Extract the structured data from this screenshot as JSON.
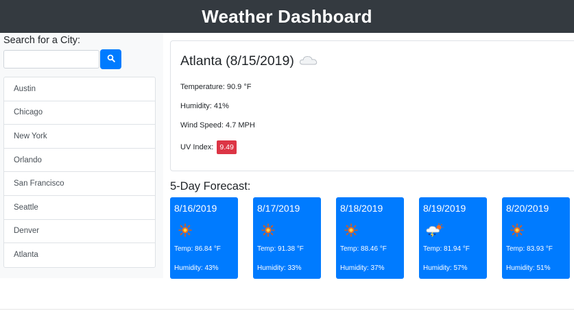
{
  "header": {
    "title": "Weather Dashboard"
  },
  "search": {
    "label": "Search for a City:",
    "value": "",
    "placeholder": "",
    "button_icon": "search-icon"
  },
  "cities": [
    "Austin",
    "Chicago",
    "New York",
    "Orlando",
    "San Francisco",
    "Seattle",
    "Denver",
    "Atlanta"
  ],
  "current": {
    "title": "Atlanta (8/15/2019)",
    "icon": "cloud-icon",
    "temperature": "Temperature: 90.9 °F",
    "humidity": "Humidity: 41%",
    "wind": "Wind Speed: 4.7 MPH",
    "uv_label": "UV Index:",
    "uv_value": "9.49"
  },
  "forecast": {
    "title": "5-Day Forecast:",
    "days": [
      {
        "date": "8/16/2019",
        "icon": "sun-icon",
        "temp": "Temp: 86.84 °F",
        "humidity": "Humidity: 43%"
      },
      {
        "date": "8/17/2019",
        "icon": "sun-icon",
        "temp": "Temp: 91.38 °F",
        "humidity": "Humidity: 33%"
      },
      {
        "date": "8/18/2019",
        "icon": "sun-icon",
        "temp": "Temp: 88.46 °F",
        "humidity": "Humidity: 37%"
      },
      {
        "date": "8/19/2019",
        "icon": "storm-icon",
        "temp": "Temp: 81.94 °F",
        "humidity": "Humidity: 57%"
      },
      {
        "date": "8/20/2019",
        "icon": "sun-icon",
        "temp": "Temp: 83.93 °F",
        "humidity": "Humidity: 51%"
      }
    ]
  },
  "colors": {
    "header_bg": "#343a40",
    "accent": "#007bff",
    "uv_high": "#dc3545"
  }
}
